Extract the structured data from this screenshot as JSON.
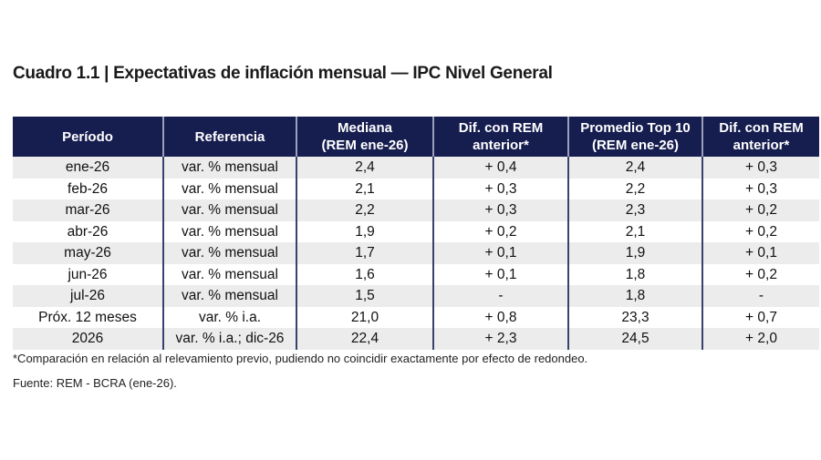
{
  "title": "Cuadro 1.1 | Expectativas de inflación mensual — IPC Nivel General",
  "table": {
    "headers": [
      [
        "Período",
        ""
      ],
      [
        "Referencia",
        ""
      ],
      [
        "Mediana",
        "(REM ene-26)"
      ],
      [
        "Dif. con REM",
        "anterior*"
      ],
      [
        "Promedio Top 10",
        "(REM ene-26)"
      ],
      [
        "Dif. con REM",
        "anterior*"
      ]
    ],
    "rows": [
      [
        "ene-26",
        "var. % mensual",
        "2,4",
        "+ 0,4",
        "2,4",
        "+ 0,3"
      ],
      [
        "feb-26",
        "var. % mensual",
        "2,1",
        "+ 0,3",
        "2,2",
        "+ 0,3"
      ],
      [
        "mar-26",
        "var. % mensual",
        "2,2",
        "+ 0,3",
        "2,3",
        "+ 0,2"
      ],
      [
        "abr-26",
        "var. % mensual",
        "1,9",
        "+ 0,2",
        "2,1",
        "+ 0,2"
      ],
      [
        "may-26",
        "var. % mensual",
        "1,7",
        "+ 0,1",
        "1,9",
        "+ 0,1"
      ],
      [
        "jun-26",
        "var. % mensual",
        "1,6",
        "+ 0,1",
        "1,8",
        "+ 0,2"
      ],
      [
        "jul-26",
        "var. % mensual",
        "1,5",
        "-",
        "1,8",
        "-"
      ],
      [
        "Próx. 12 meses",
        "var. % i.a.",
        "21,0",
        "+ 0,8",
        "23,3",
        "+ 0,7"
      ],
      [
        "2026",
        "var. % i.a.; dic-26",
        "22,4",
        "+ 2,3",
        "24,5",
        "+ 2,0"
      ]
    ]
  },
  "footnote": "*Comparación en relación al relevamiento previo, pudiendo no coincidir exactamente por efecto de redondeo.",
  "source": "Fuente: REM - BCRA (ene-26).",
  "colors": {
    "header_bg": "#161d4f",
    "row_shade": "#ececec"
  }
}
